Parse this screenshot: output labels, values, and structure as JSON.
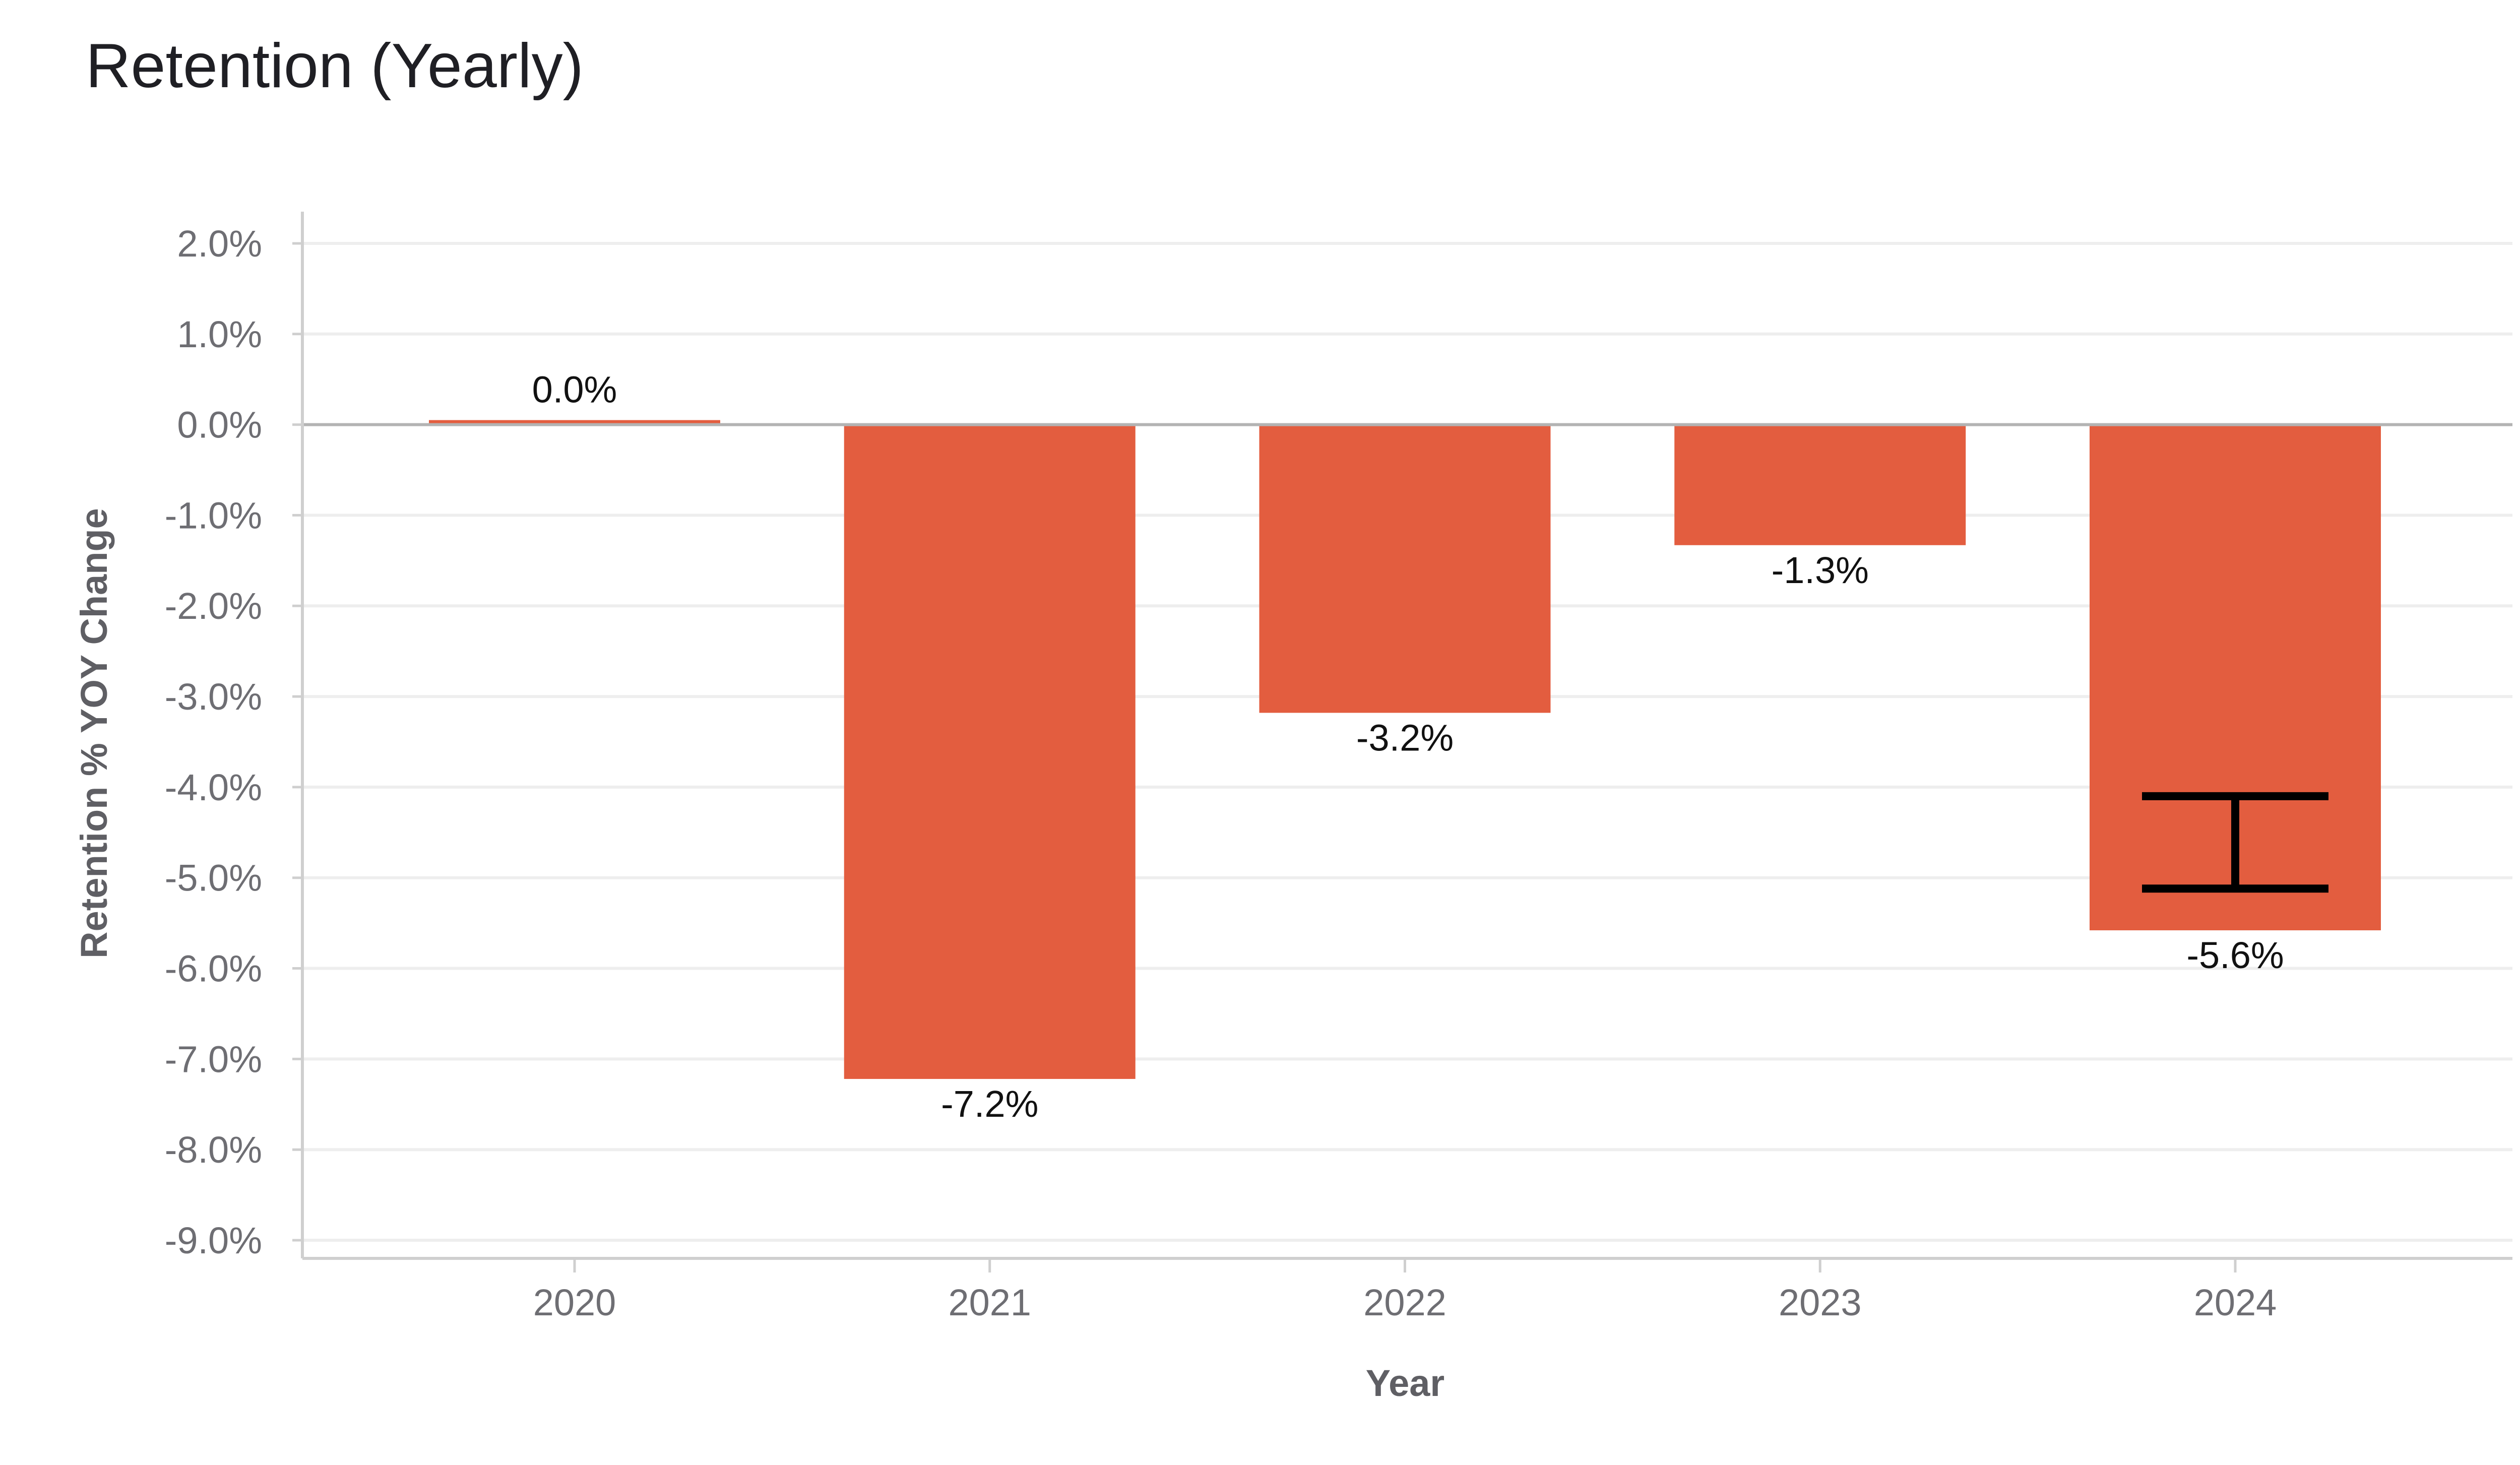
{
  "title": "Retention (Yearly)",
  "chart_data": {
    "type": "bar",
    "title": "Retention (Yearly)",
    "xlabel": "Year",
    "ylabel": "Retention % YOY Change",
    "categories": [
      "2020",
      "2021",
      "2022",
      "2023",
      "2024"
    ],
    "values": [
      0.05,
      -7.22,
      -3.18,
      -1.33,
      -5.58
    ],
    "data_labels": [
      "0.0%",
      "-7.2%",
      "-3.2%",
      "-1.3%",
      "-5.6%"
    ],
    "yticks": [
      2,
      1,
      0,
      -1,
      -2,
      -3,
      -4,
      -5,
      -6,
      -7,
      -8,
      -9
    ],
    "ytick_labels": [
      "2.0%",
      "1.0%",
      "0.0%",
      "-1.0%",
      "-2.0%",
      "-3.0%",
      "-4.0%",
      "-5.0%",
      "-6.0%",
      "-7.0%",
      "-8.0%",
      "-9.0%"
    ],
    "ylim": [
      -9.2,
      2.35
    ],
    "grid": true,
    "bar_color": "#e35d3f",
    "error_bar": {
      "category": "2024",
      "upper": -4.1,
      "lower": -5.12
    }
  }
}
